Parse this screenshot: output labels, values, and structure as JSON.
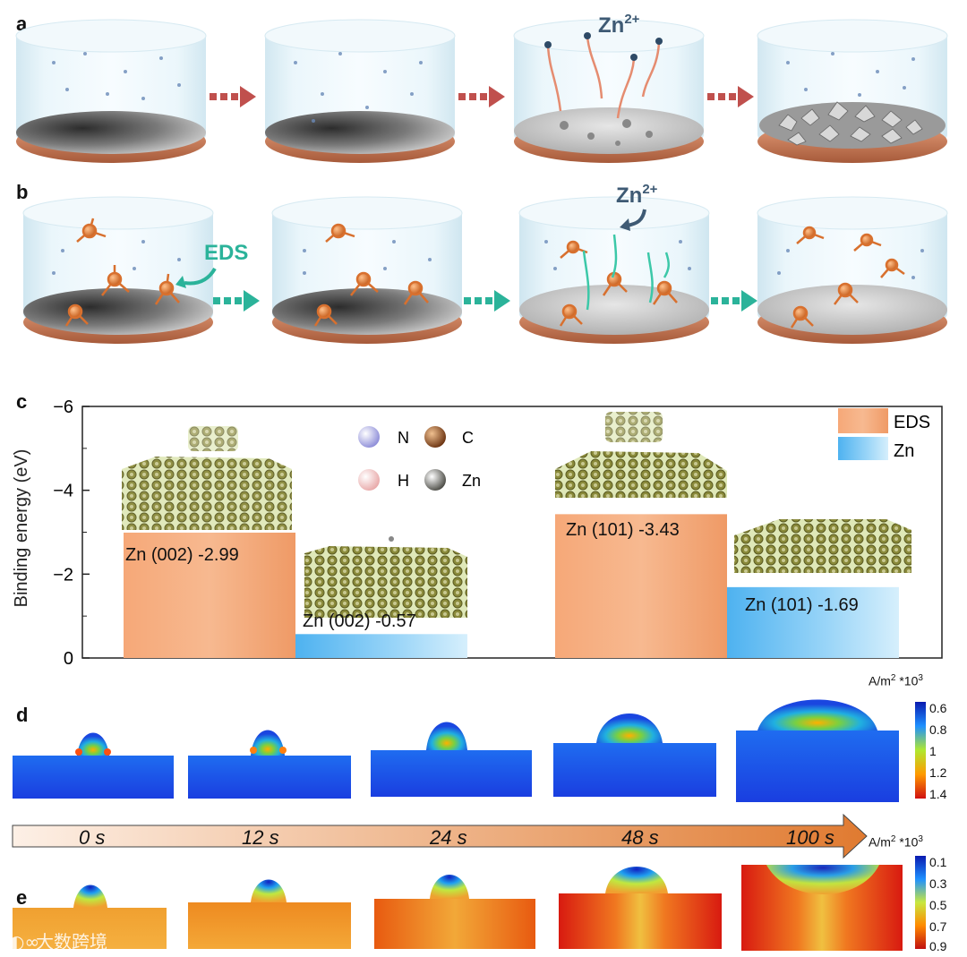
{
  "panel_labels": {
    "a": "a",
    "b": "b",
    "c": "c",
    "d": "d",
    "e": "e"
  },
  "panel_a": {
    "ion_label": "Zn",
    "ion_charge": "2+",
    "arrow_color": "#c0504d"
  },
  "panel_b": {
    "additive_label": "EDS",
    "ion_label": "Zn",
    "ion_charge": "2+",
    "arrow_color": "#2bb39a"
  },
  "chart_data": {
    "type": "bar",
    "ylabel": "Binding energy (eV)",
    "ylim": [
      0,
      -6
    ],
    "yticks": [
      "−6",
      "−4",
      "−2",
      "0"
    ],
    "categories": [
      "Zn (002)",
      "Zn (101)"
    ],
    "series": [
      {
        "name": "EDS",
        "values": [
          -2.99,
          -3.43
        ],
        "color": "#f0a070"
      },
      {
        "name": "Zn",
        "values": [
          -0.57,
          -1.69
        ],
        "color": "#6bbef0"
      }
    ],
    "bar_labels": [
      "Zn (002) -2.99",
      "Zn (002) -0.57",
      "Zn (101) -3.43",
      "Zn (101) -1.69"
    ],
    "legend": [
      {
        "label": "EDS",
        "color": "#f0a070"
      },
      {
        "label": "Zn",
        "color": "#6bbef0"
      }
    ],
    "atom_legend": [
      {
        "label": "N",
        "color": "#b8b8e8"
      },
      {
        "label": "C",
        "color": "#8a4a20"
      },
      {
        "label": "H",
        "color": "#f0c8c8"
      },
      {
        "label": "Zn",
        "color": "#6a6a66"
      }
    ]
  },
  "panel_d": {
    "unit": "A/m",
    "unit_exp": "2",
    "unit_scale": "*10",
    "unit_scale_exp": "3",
    "colorbar_ticks": [
      "0.6",
      "0.8",
      "1",
      "1.2",
      "1.4"
    ]
  },
  "timeline": {
    "labels": [
      "0 s",
      "12 s",
      "24 s",
      "48 s",
      "100 s"
    ]
  },
  "panel_e": {
    "unit": "A/m",
    "unit_exp": "2",
    "unit_scale": "*10",
    "unit_scale_exp": "3",
    "colorbar_ticks": [
      "0.1",
      "0.3",
      "0.5",
      "0.7",
      "0.9"
    ]
  },
  "watermark": "大数跨境"
}
